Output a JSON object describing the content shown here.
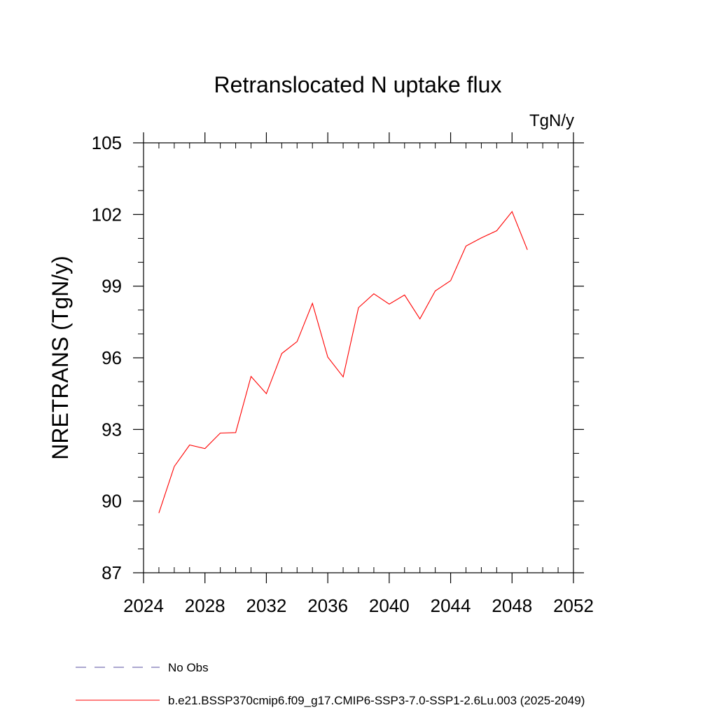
{
  "chart_data": {
    "type": "line",
    "title": "Retranslocated N uptake flux",
    "units": "TgN/y",
    "xlabel": "",
    "ylabel": "NRETRANS  (TgN/y)",
    "xlim": [
      2024,
      2052
    ],
    "ylim": [
      87,
      105
    ],
    "x_ticks": [
      2024,
      2028,
      2032,
      2036,
      2040,
      2044,
      2048,
      2052
    ],
    "y_ticks": [
      87,
      90,
      93,
      96,
      99,
      102,
      105
    ],
    "x_minor_step": 1,
    "y_minor_step": 1,
    "grid": false,
    "legend_position": "bottom-left",
    "series": [
      {
        "name": "b.e21.BSSP370cmip6.f09_g17.CMIP6-SSP3-7.0-SSP1-2.6Lu.003 (2025-2049)",
        "color": "#ff0000",
        "style": "solid",
        "x": [
          2025,
          2026,
          2027,
          2028,
          2029,
          2030,
          2031,
          2032,
          2033,
          2034,
          2035,
          2036,
          2037,
          2038,
          2039,
          2040,
          2041,
          2042,
          2043,
          2044,
          2045,
          2046,
          2047,
          2048,
          2049
        ],
        "values": [
          89.5,
          91.45,
          92.35,
          92.2,
          92.85,
          92.87,
          95.22,
          94.5,
          96.18,
          96.68,
          98.28,
          96.03,
          95.2,
          98.1,
          98.68,
          98.25,
          98.63,
          97.63,
          98.8,
          99.23,
          100.68,
          101.02,
          101.32,
          102.12,
          100.52
        ]
      }
    ],
    "legend": [
      {
        "label": "No Obs",
        "color": "#5a4fa0",
        "style": "dashed"
      },
      {
        "label": "b.e21.BSSP370cmip6.f09_g17.CMIP6-SSP3-7.0-SSP1-2.6Lu.003 (2025-2049)",
        "color": "#ff0000",
        "style": "solid"
      }
    ]
  }
}
